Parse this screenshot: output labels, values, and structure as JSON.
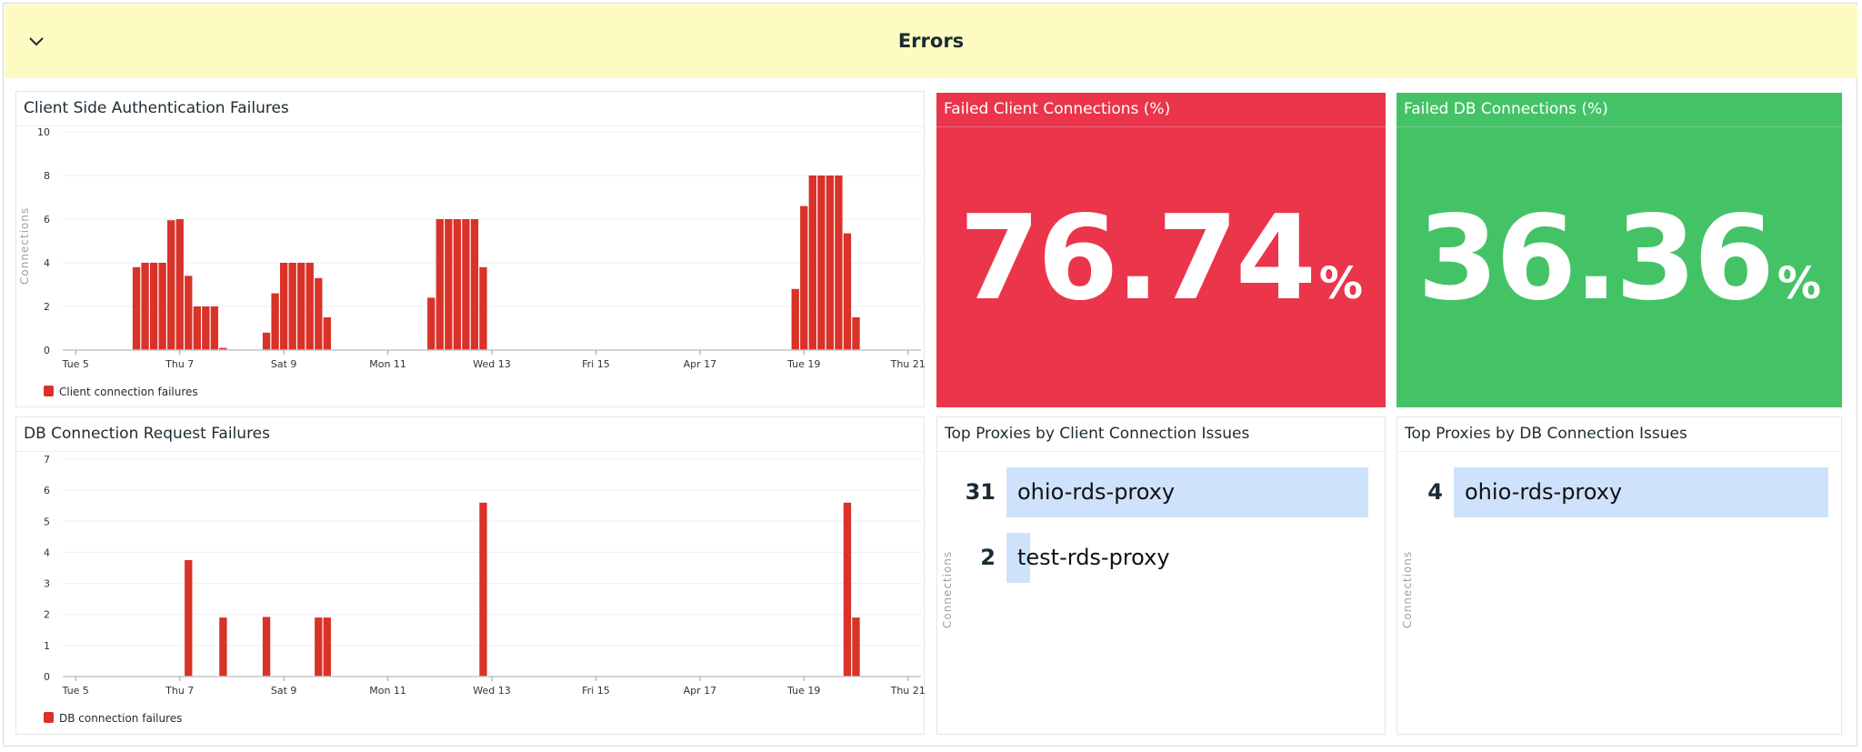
{
  "section": {
    "title": "Errors",
    "collapse_icon": "chevron-down-icon"
  },
  "colors": {
    "header_bg": "#fefbc2",
    "bar": "#d93228",
    "stat_red": "#ea354b",
    "stat_green": "#44c366",
    "toplist_bar": "#cfe2fb"
  },
  "client_auth_chart": {
    "title": "Client Side Authentication Failures",
    "ylabel": "Connections",
    "legend": "Client connection failures"
  },
  "db_request_chart": {
    "title": "DB Connection Request Failures",
    "legend": "DB connection failures"
  },
  "failed_client": {
    "title": "Failed Client Connections (%)",
    "value": "76.74",
    "unit": "%"
  },
  "failed_db": {
    "title": "Failed DB Connections (%)",
    "value": "36.36",
    "unit": "%"
  },
  "top_client": {
    "title": "Top Proxies by Client Connection Issues",
    "ylabel": "Connections",
    "rows": [
      {
        "value": "31",
        "label": "ohio-rds-proxy",
        "n": 31
      },
      {
        "value": "2",
        "label": "test-rds-proxy",
        "n": 2
      }
    ]
  },
  "top_db": {
    "title": "Top Proxies by DB Connection Issues",
    "ylabel": "Connections",
    "rows": [
      {
        "value": "4",
        "label": "ohio-rds-proxy",
        "n": 4
      }
    ]
  },
  "chart_data": [
    {
      "type": "bar",
      "title": "Client Side Authentication Failures",
      "ylabel": "Connections",
      "xlim": [
        "Apr 4 18:00",
        "Apr 21 06:00"
      ],
      "ylim": [
        0,
        10
      ],
      "yticks": [
        0,
        2,
        4,
        6,
        8,
        10
      ],
      "xticks": [
        {
          "t": "Apr 5 00:00",
          "label": "Tue 5"
        },
        {
          "t": "Apr 7 00:00",
          "label": "Thu 7"
        },
        {
          "t": "Apr 9 00:00",
          "label": "Sat 9"
        },
        {
          "t": "Apr 11 00:00",
          "label": "Mon 11"
        },
        {
          "t": "Apr 13 00:00",
          "label": "Wed 13"
        },
        {
          "t": "Apr 15 00:00",
          "label": "Fri 15"
        },
        {
          "t": "Apr 17 00:00",
          "label": "Apr 17"
        },
        {
          "t": "Apr 19 00:00",
          "label": "Tue 19"
        },
        {
          "t": "Apr 21 00:00",
          "label": "Thu 21"
        }
      ],
      "grid": true,
      "legend_position": "bottom-left",
      "series": [
        {
          "name": "Client connection failures",
          "points": [
            [
              "Apr 6 04:00",
              3.8
            ],
            [
              "Apr 6 08:00",
              4
            ],
            [
              "Apr 6 12:00",
              4
            ],
            [
              "Apr 6 16:00",
              4
            ],
            [
              "Apr 6 20:00",
              5.95
            ],
            [
              "Apr 7 00:00",
              6
            ],
            [
              "Apr 7 04:00",
              3.4
            ],
            [
              "Apr 7 08:00",
              2
            ],
            [
              "Apr 7 12:00",
              2
            ],
            [
              "Apr 7 16:00",
              2
            ],
            [
              "Apr 7 20:00",
              0.1
            ],
            [
              "Apr 8 16:00",
              0.8
            ],
            [
              "Apr 8 20:00",
              2.6
            ],
            [
              "Apr 9 00:00",
              4
            ],
            [
              "Apr 9 04:00",
              4
            ],
            [
              "Apr 9 08:00",
              4
            ],
            [
              "Apr 9 12:00",
              4
            ],
            [
              "Apr 9 16:00",
              3.3
            ],
            [
              "Apr 9 20:00",
              1.5
            ],
            [
              "Apr 11 20:00",
              2.4
            ],
            [
              "Apr 12 00:00",
              6
            ],
            [
              "Apr 12 04:00",
              6
            ],
            [
              "Apr 12 08:00",
              6
            ],
            [
              "Apr 12 12:00",
              6
            ],
            [
              "Apr 12 16:00",
              6
            ],
            [
              "Apr 12 20:00",
              3.8
            ],
            [
              "Apr 18 20:00",
              2.8
            ],
            [
              "Apr 19 00:00",
              6.6
            ],
            [
              "Apr 19 04:00",
              8
            ],
            [
              "Apr 19 08:00",
              8
            ],
            [
              "Apr 19 12:00",
              8
            ],
            [
              "Apr 19 16:00",
              8
            ],
            [
              "Apr 19 20:00",
              5.35
            ],
            [
              "Apr 20 00:00",
              1.5
            ]
          ]
        }
      ]
    },
    {
      "type": "bar",
      "title": "DB Connection Request Failures",
      "xlim": [
        "Apr 4 18:00",
        "Apr 21 06:00"
      ],
      "ylim": [
        0,
        7
      ],
      "yticks": [
        0,
        1,
        2,
        3,
        4,
        5,
        6,
        7
      ],
      "xticks": [
        {
          "t": "Apr 5 00:00",
          "label": "Tue 5"
        },
        {
          "t": "Apr 7 00:00",
          "label": "Thu 7"
        },
        {
          "t": "Apr 9 00:00",
          "label": "Sat 9"
        },
        {
          "t": "Apr 11 00:00",
          "label": "Mon 11"
        },
        {
          "t": "Apr 13 00:00",
          "label": "Wed 13"
        },
        {
          "t": "Apr 15 00:00",
          "label": "Fri 15"
        },
        {
          "t": "Apr 17 00:00",
          "label": "Apr 17"
        },
        {
          "t": "Apr 19 00:00",
          "label": "Tue 19"
        },
        {
          "t": "Apr 21 00:00",
          "label": "Thu 21"
        }
      ],
      "grid": true,
      "legend_position": "bottom-left",
      "series": [
        {
          "name": "DB connection failures",
          "points": [
            [
              "Apr 7 04:00",
              3.75
            ],
            [
              "Apr 7 20:00",
              1.9
            ],
            [
              "Apr 8 16:00",
              1.92
            ],
            [
              "Apr 9 16:00",
              1.9
            ],
            [
              "Apr 9 20:00",
              1.9
            ],
            [
              "Apr 12 20:00",
              5.6
            ],
            [
              "Apr 19 20:00",
              5.6
            ],
            [
              "Apr 20 00:00",
              1.9
            ]
          ]
        }
      ]
    }
  ]
}
